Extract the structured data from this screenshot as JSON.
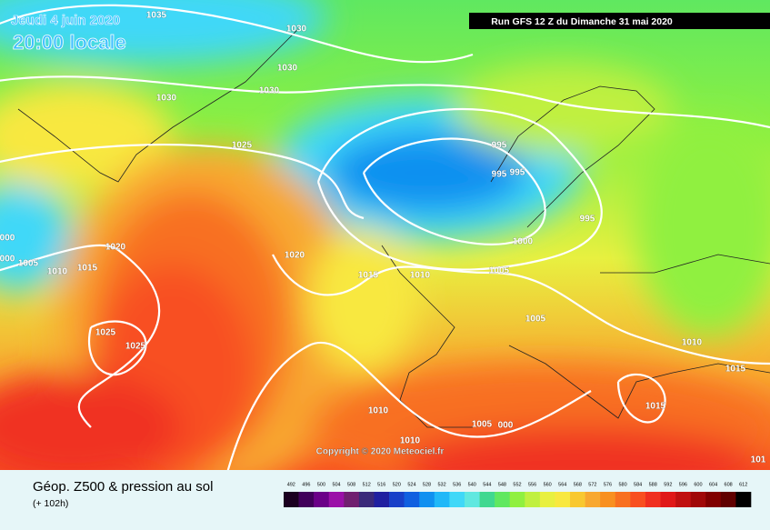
{
  "header": {
    "date": "Jeudi 4 juin 2020",
    "time": "20:00 locale",
    "run": "Run GFS 12 Z du Dimanche 31 mai 2020",
    "copyright": "Copyright © 2020 Meteociel.fr"
  },
  "isobar_labels": [
    "1035",
    "1030",
    "1030",
    "1030",
    "1030",
    "1025",
    "995",
    "995",
    "995",
    "995",
    "1000",
    "000",
    "000",
    "1005",
    "1010",
    "1015",
    "1020",
    "1020",
    "1015",
    "1010",
    "1005",
    "1005",
    "1025",
    "1025",
    "1010",
    "1015",
    "1015",
    "1010",
    "1010",
    "1005",
    "000",
    "101"
  ],
  "legend": {
    "title": "Géop. Z500 & pression au sol",
    "lead": "(+ 102h)",
    "scale": [
      {
        "label": 492,
        "color": "#1a0020"
      },
      {
        "label": 496,
        "color": "#40005a"
      },
      {
        "label": 500,
        "color": "#6a0088"
      },
      {
        "label": 504,
        "color": "#9a10a8"
      },
      {
        "label": 508,
        "color": "#702070"
      },
      {
        "label": 512,
        "color": "#3a2a7a"
      },
      {
        "label": 516,
        "color": "#2020a0"
      },
      {
        "label": 520,
        "color": "#1840c8"
      },
      {
        "label": 524,
        "color": "#1060e0"
      },
      {
        "label": 528,
        "color": "#1090f0"
      },
      {
        "label": 532,
        "color": "#20b8f8"
      },
      {
        "label": 536,
        "color": "#40d8f8"
      },
      {
        "label": 540,
        "color": "#60e8e0"
      },
      {
        "label": 544,
        "color": "#40d890"
      },
      {
        "label": 548,
        "color": "#60e860"
      },
      {
        "label": 552,
        "color": "#90f040"
      },
      {
        "label": 556,
        "color": "#c0f040"
      },
      {
        "label": 560,
        "color": "#e8f040"
      },
      {
        "label": 564,
        "color": "#f8e840"
      },
      {
        "label": 568,
        "color": "#f8c830"
      },
      {
        "label": 572,
        "color": "#f8a830"
      },
      {
        "label": 576,
        "color": "#f89020"
      },
      {
        "label": 580,
        "color": "#f87020"
      },
      {
        "label": 584,
        "color": "#f85020"
      },
      {
        "label": 588,
        "color": "#f03020"
      },
      {
        "label": 592,
        "color": "#e01818"
      },
      {
        "label": 596,
        "color": "#c01010"
      },
      {
        "label": 600,
        "color": "#a00808"
      },
      {
        "label": 604,
        "color": "#800000"
      },
      {
        "label": 608,
        "color": "#600000"
      },
      {
        "label": 612,
        "color": "#000000"
      }
    ]
  }
}
